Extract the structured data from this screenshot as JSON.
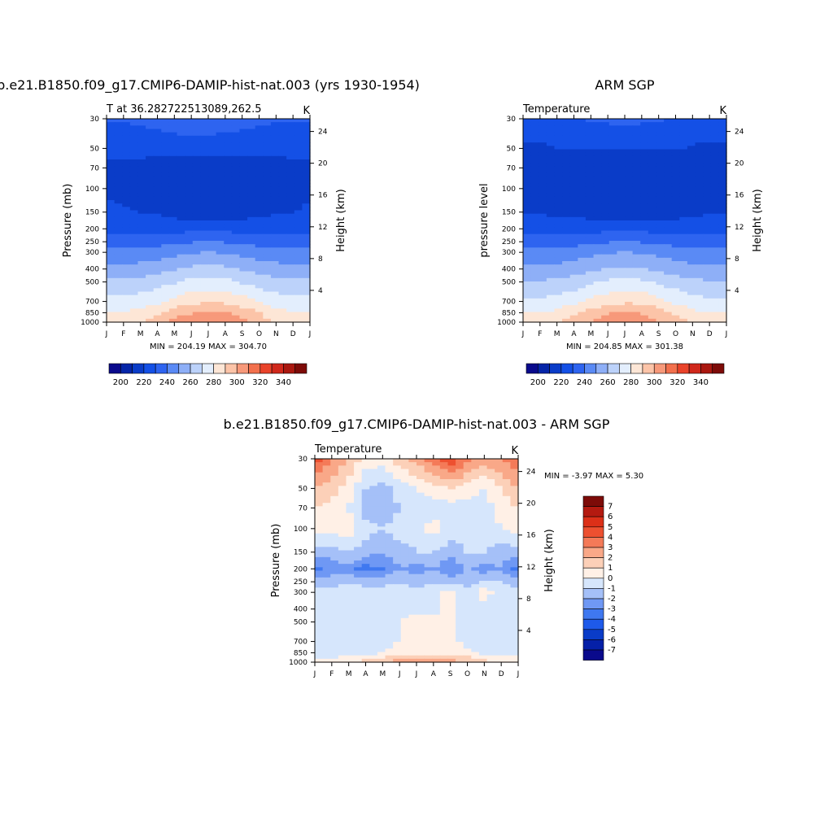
{
  "chart_data": [
    {
      "type": "heatmap",
      "title": "b.e21.B1850.f09_g17.CMIP6-DAMIP-hist-nat.003 (yrs 1930-1954)",
      "subtitle_left": "T at 36.282722513089,262.5",
      "subtitle_right": "K",
      "ylabel": "Pressure (mb)",
      "ylabel_right": "Height (km)",
      "x": [
        "J",
        "F",
        "M",
        "A",
        "M",
        "J",
        "J",
        "A",
        "S",
        "O",
        "N",
        "D",
        "J"
      ],
      "yticks": [
        "30",
        "50",
        "70",
        "100",
        "150",
        "200",
        "250",
        "300",
        "400",
        "500",
        "700",
        "850",
        "1000"
      ],
      "yticks_right": [
        "24",
        "20",
        "16",
        "12",
        "8",
        "4"
      ],
      "minmax_text": "MIN = 204.19 MAX = 304.70",
      "colorbar_labels": [
        "200",
        "220",
        "240",
        "260",
        "280",
        "300",
        "320",
        "340"
      ],
      "levels": [
        30,
        50,
        70,
        100,
        150,
        200,
        250,
        300,
        400,
        500,
        700,
        850,
        1000
      ],
      "values": [
        [
          226,
          226,
          227,
          229,
          231,
          232,
          232,
          231,
          229,
          227,
          226,
          226,
          226
        ],
        [
          218,
          218,
          218,
          219,
          219,
          219,
          219,
          219,
          219,
          219,
          219,
          218,
          218
        ],
        [
          213,
          212,
          212,
          209,
          208,
          208,
          208,
          208,
          208,
          209,
          210,
          212,
          213
        ],
        [
          214,
          213,
          212,
          209,
          207,
          206,
          206,
          206,
          207,
          208,
          210,
          212,
          214
        ],
        [
          216,
          216,
          215,
          214,
          211,
          209,
          209,
          209,
          210,
          212,
          214,
          215,
          216
        ],
        [
          222,
          222,
          222,
          222,
          222,
          222,
          222,
          222,
          222,
          222,
          222,
          222,
          222
        ],
        [
          230,
          230,
          230,
          231,
          232,
          234,
          235,
          234,
          232,
          231,
          230,
          230,
          230
        ],
        [
          238,
          238,
          239,
          240,
          242,
          244,
          245,
          244,
          242,
          240,
          239,
          238,
          238
        ],
        [
          248,
          248,
          249,
          251,
          254,
          257,
          258,
          257,
          254,
          251,
          249,
          248,
          248
        ],
        [
          257,
          257,
          258,
          261,
          264,
          268,
          269,
          268,
          264,
          261,
          258,
          257,
          257
        ],
        [
          268,
          268,
          270,
          273,
          278,
          282,
          284,
          283,
          279,
          274,
          270,
          268,
          268
        ],
        [
          276,
          276,
          279,
          284,
          290,
          295,
          297,
          296,
          291,
          285,
          279,
          276,
          276
        ],
        [
          280,
          281,
          285,
          291,
          297,
          302,
          304,
          303,
          298,
          291,
          285,
          281,
          280
        ]
      ]
    },
    {
      "type": "heatmap",
      "title": "ARM SGP",
      "subtitle_left": "Temperature",
      "subtitle_right": "K",
      "ylabel": "pressure level",
      "ylabel_right": "Height (km)",
      "x": [
        "J",
        "F",
        "M",
        "A",
        "M",
        "J",
        "J",
        "A",
        "S",
        "O",
        "N",
        "D",
        "J"
      ],
      "yticks": [
        "30",
        "50",
        "70",
        "100",
        "150",
        "200",
        "250",
        "300",
        "400",
        "500",
        "700",
        "850",
        "1000"
      ],
      "yticks_right": [
        "24",
        "20",
        "16",
        "12",
        "8",
        "4"
      ],
      "minmax_text": "MIN = 204.85 MAX = 301.38",
      "colorbar_labels": [
        "200",
        "220",
        "240",
        "260",
        "280",
        "300",
        "320",
        "340"
      ],
      "levels": [
        30,
        50,
        70,
        100,
        150,
        200,
        250,
        300,
        400,
        500,
        700,
        850,
        1000
      ],
      "values": [
        [
          224,
          224,
          224,
          225,
          226,
          227,
          228,
          227,
          226,
          225,
          224,
          224,
          224
        ],
        [
          212,
          213,
          215,
          216,
          216,
          216,
          216,
          216,
          216,
          216,
          214,
          212,
          212
        ],
        [
          210,
          211,
          209,
          208,
          207,
          207,
          207,
          207,
          207,
          208,
          209,
          211,
          211
        ],
        [
          213,
          211,
          208,
          206,
          205,
          205,
          205,
          205,
          205,
          206,
          208,
          211,
          213
        ],
        [
          215,
          214,
          213,
          212,
          210,
          208,
          208,
          208,
          209,
          211,
          213,
          214,
          215
        ],
        [
          221,
          221,
          221,
          221,
          221,
          222,
          222,
          222,
          221,
          221,
          221,
          221,
          221
        ],
        [
          230,
          230,
          230,
          231,
          232,
          234,
          235,
          234,
          232,
          231,
          230,
          230,
          230
        ],
        [
          238,
          238,
          239,
          240,
          242,
          244,
          245,
          244,
          242,
          240,
          239,
          238,
          238
        ],
        [
          247,
          247,
          248,
          250,
          253,
          256,
          257,
          256,
          253,
          250,
          248,
          247,
          247
        ],
        [
          256,
          256,
          257,
          260,
          263,
          267,
          268,
          267,
          263,
          260,
          257,
          256,
          256
        ],
        [
          267,
          267,
          269,
          272,
          277,
          281,
          283,
          282,
          278,
          273,
          269,
          267,
          267
        ],
        [
          275,
          275,
          278,
          283,
          289,
          294,
          296,
          295,
          290,
          284,
          278,
          275,
          275
        ],
        [
          278,
          279,
          283,
          289,
          295,
          299,
          301,
          300,
          296,
          289,
          283,
          279,
          278
        ]
      ]
    },
    {
      "type": "heatmap",
      "title": "b.e21.B1850.f09_g17.CMIP6-DAMIP-hist-nat.003 - ARM SGP",
      "subtitle_left": "Temperature",
      "subtitle_right": "K",
      "ylabel": "Pressure (mb)",
      "ylabel_right": "Height (km)",
      "x": [
        "J",
        "F",
        "M",
        "A",
        "M",
        "J",
        "J",
        "A",
        "S",
        "O",
        "N",
        "D",
        "J"
      ],
      "yticks": [
        "30",
        "50",
        "70",
        "100",
        "150",
        "200",
        "250",
        "300",
        "400",
        "500",
        "700",
        "850",
        "1000"
      ],
      "yticks_right": [
        "24",
        "20",
        "16",
        "12",
        "8",
        "4"
      ],
      "minmax_text": "MIN =  -3.97 MAX =   5.30",
      "colorbar_labels": [
        "7",
        "6",
        "5",
        "4",
        "3",
        "2",
        "1",
        "0",
        "-1",
        "-2",
        "-3",
        "-4",
        "-5",
        "-6",
        "-7"
      ],
      "levels": [
        30,
        50,
        70,
        100,
        150,
        200,
        250,
        300,
        400,
        500,
        700,
        850,
        1000
      ],
      "values": [
        [
          4.5,
          3.0,
          2.0,
          0.5,
          0.5,
          1.5,
          2.5,
          3.5,
          5.0,
          3.5,
          2.5,
          3.0,
          4.0
        ],
        [
          2.0,
          1.5,
          0.5,
          -1.0,
          -1.5,
          -0.5,
          0.0,
          0.5,
          1.0,
          0.5,
          0.0,
          1.0,
          2.0
        ],
        [
          1.0,
          0.5,
          0.0,
          -1.5,
          -2.0,
          -1.0,
          -0.5,
          -0.5,
          -0.5,
          -0.5,
          -0.5,
          0.5,
          1.0
        ],
        [
          0.5,
          0.5,
          0.5,
          -0.5,
          -1.0,
          -0.5,
          -0.5,
          0.5,
          -0.5,
          -0.5,
          -0.5,
          0.0,
          0.5
        ],
        [
          -1.5,
          -1.5,
          -1.0,
          -1.5,
          -2.0,
          -1.5,
          -1.0,
          -1.0,
          -1.5,
          -1.0,
          -1.0,
          -1.5,
          -1.5
        ],
        [
          -3.5,
          -2.5,
          -2.5,
          -3.5,
          -3.0,
          -2.0,
          -2.5,
          -2.0,
          -3.0,
          -2.0,
          -2.5,
          -2.0,
          -3.5
        ],
        [
          -1.5,
          -1.5,
          -1.0,
          -1.5,
          -1.5,
          -1.0,
          -1.5,
          -1.0,
          -1.5,
          -1.5,
          -1.0,
          -1.0,
          -1.5
        ],
        [
          -0.5,
          -0.5,
          -0.5,
          -0.5,
          -0.5,
          -0.5,
          -0.5,
          -0.5,
          0.5,
          -0.5,
          0.5,
          -0.5,
          -0.5
        ],
        [
          -0.5,
          -0.5,
          -0.5,
          -0.5,
          -0.5,
          -0.5,
          -0.5,
          -0.5,
          0.5,
          -0.5,
          -0.5,
          -0.5,
          -0.5
        ],
        [
          -0.5,
          -0.5,
          -0.5,
          -0.5,
          -0.5,
          0.0,
          0.5,
          0.5,
          0.5,
          -0.5,
          -0.5,
          -0.5,
          -0.5
        ],
        [
          -0.5,
          -0.5,
          -0.5,
          -1.0,
          -0.5,
          0.0,
          0.5,
          0.5,
          0.5,
          -0.5,
          -0.5,
          -0.5,
          -0.5
        ],
        [
          -0.5,
          -0.5,
          -0.5,
          -0.5,
          0.0,
          0.5,
          0.5,
          0.5,
          0.5,
          0.5,
          -0.5,
          -0.5,
          -0.5
        ],
        [
          0.5,
          0.5,
          1.0,
          1.5,
          2.0,
          2.5,
          2.5,
          2.5,
          2.5,
          2.0,
          1.5,
          1.0,
          0.5
        ]
      ]
    }
  ]
}
